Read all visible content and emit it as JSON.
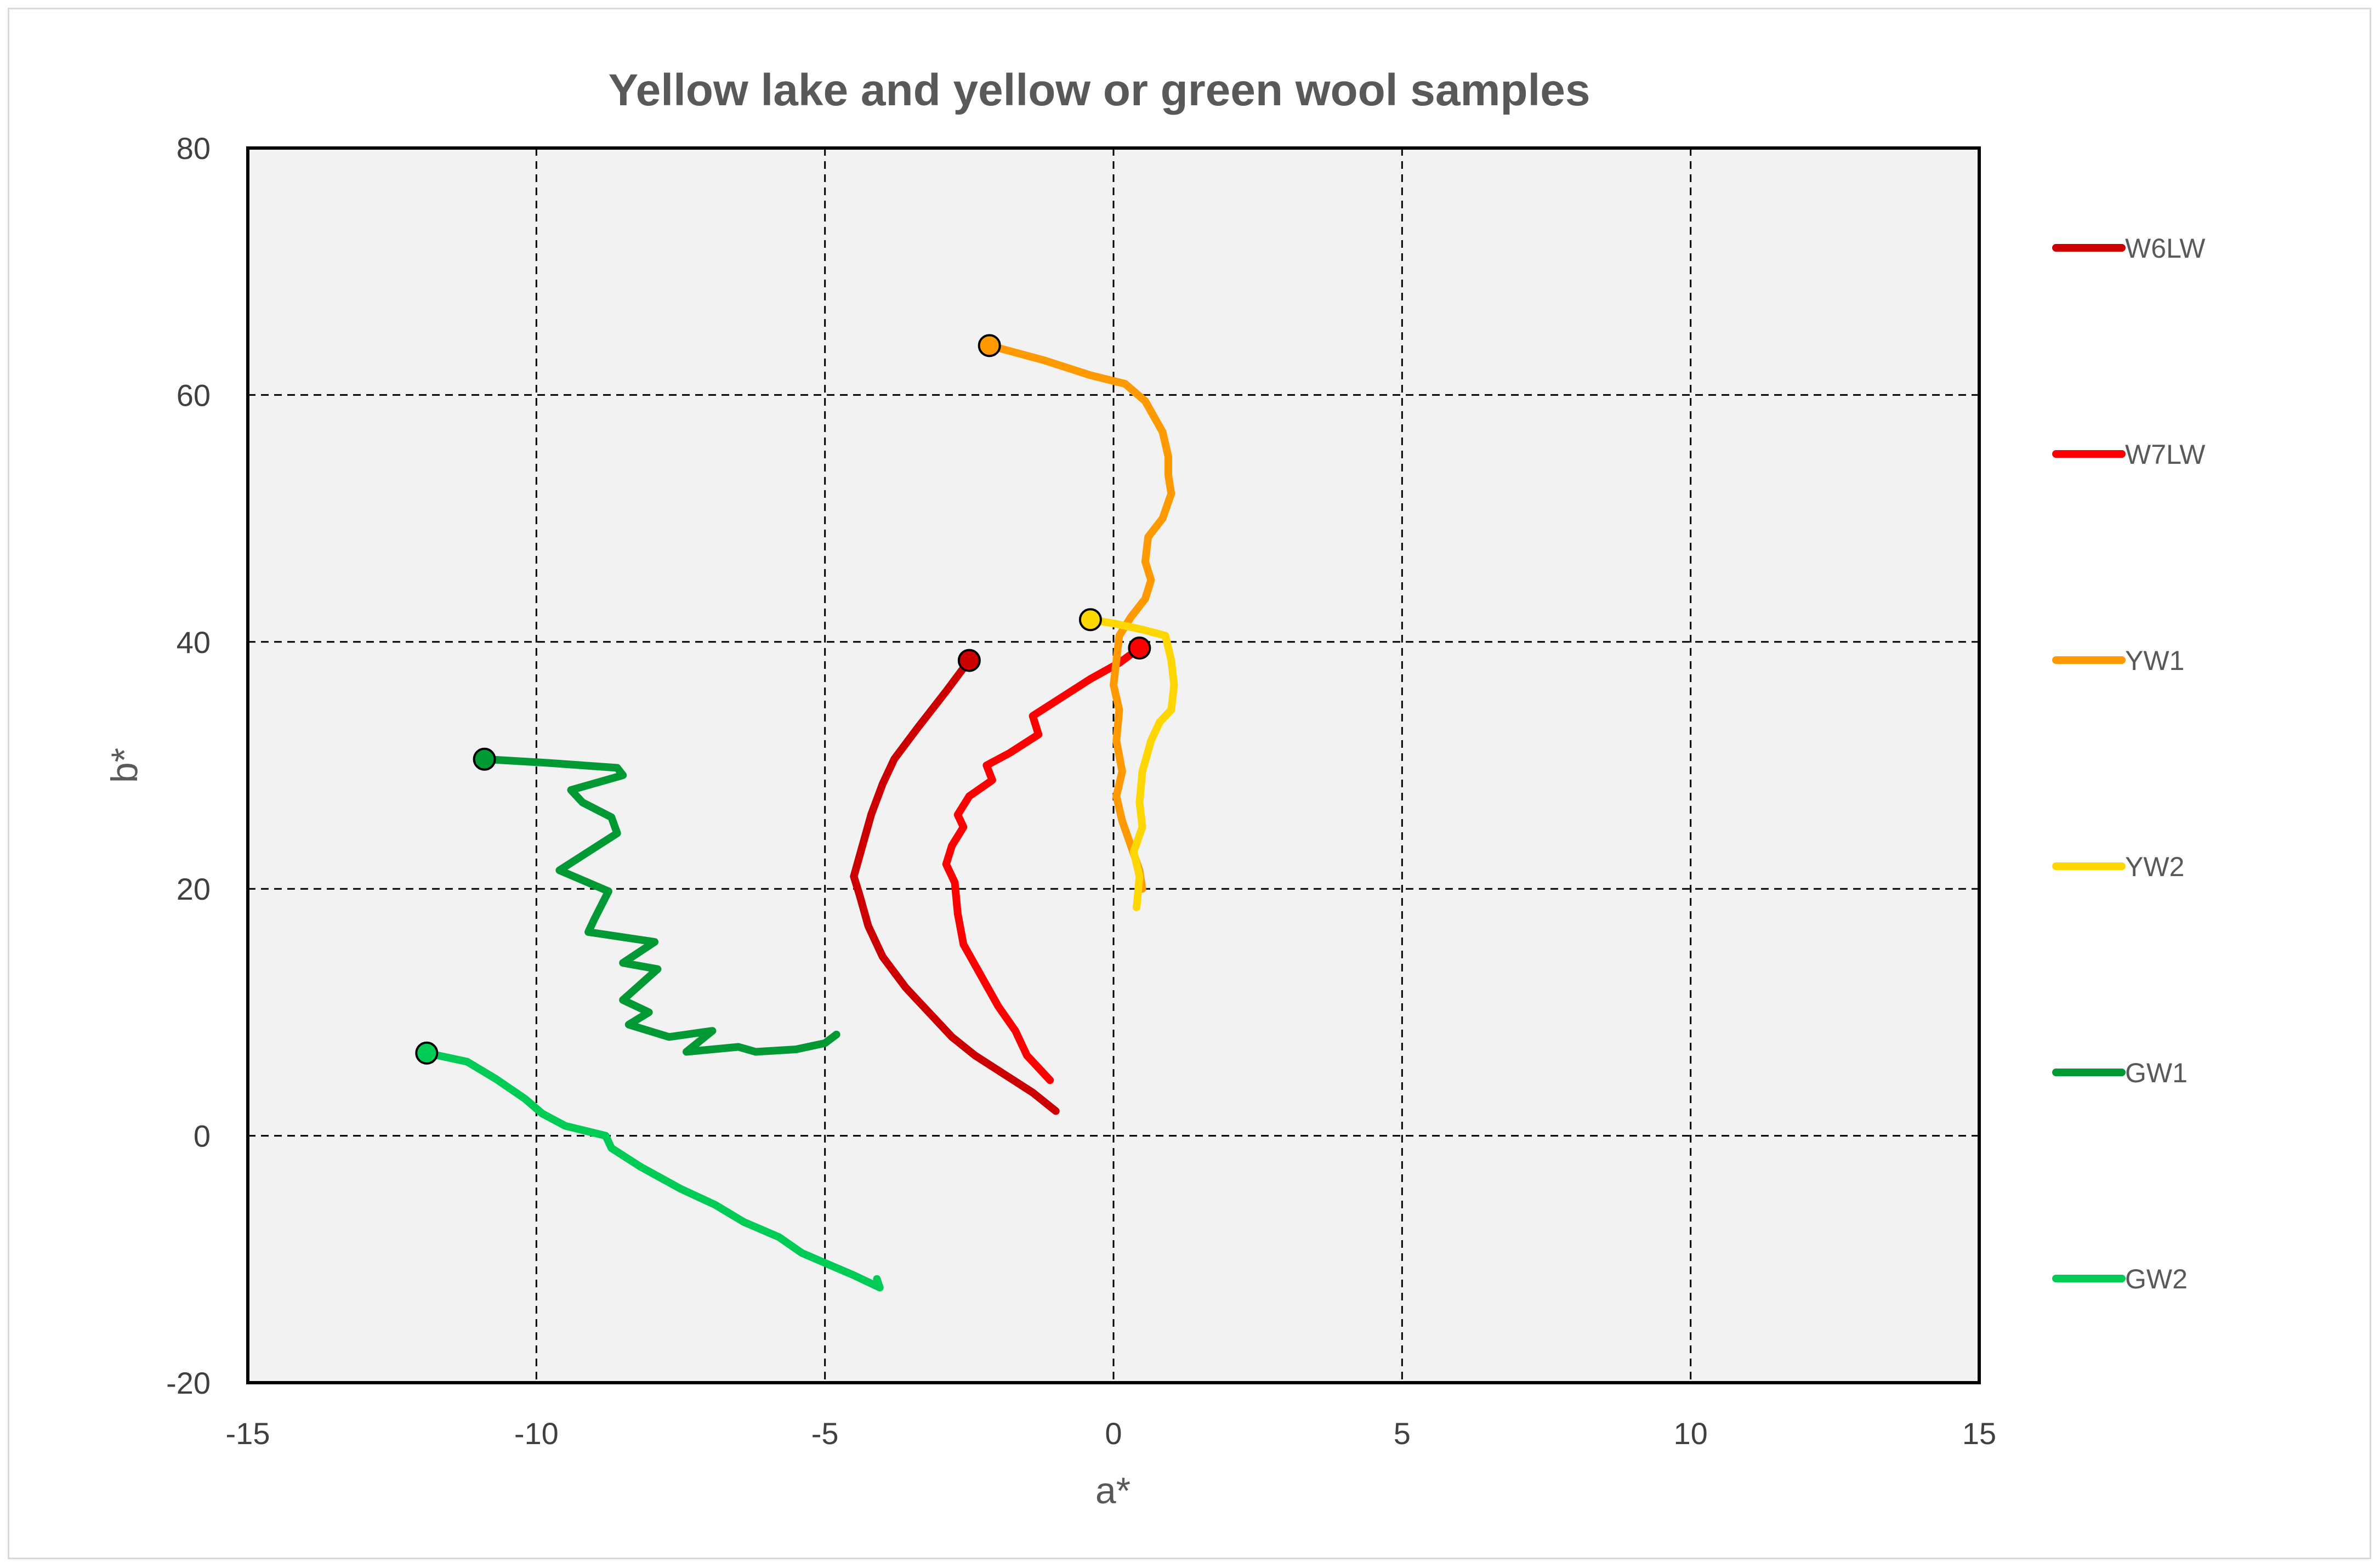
{
  "chart_data": {
    "type": "line",
    "title": "Yellow lake and yellow or green wool samples",
    "xlabel": "a*",
    "ylabel": "b*",
    "xlim": [
      -15,
      15
    ],
    "ylim": [
      -20,
      80
    ],
    "xticks": [
      -15,
      -10,
      -5,
      0,
      5,
      10,
      15
    ],
    "yticks": [
      -20,
      0,
      20,
      40,
      60,
      80
    ],
    "xtick_labels": [
      "-15",
      "-10",
      "-5",
      "0",
      "5",
      "10",
      "15"
    ],
    "ytick_labels": [
      "-20",
      "0",
      "20",
      "40",
      "60",
      "80"
    ],
    "grid": "dashed",
    "plot_background": "#f2f2f2",
    "legend_position": "right",
    "series": [
      {
        "name": "W6LW",
        "color": "#cc0000",
        "start_marker": true,
        "points": [
          [
            -2.5,
            38.5
          ],
          [
            -2.9,
            36.0
          ],
          [
            -3.4,
            33.0
          ],
          [
            -3.8,
            30.5
          ],
          [
            -4.0,
            28.5
          ],
          [
            -4.2,
            26.0
          ],
          [
            -4.35,
            23.5
          ],
          [
            -4.5,
            21.0
          ],
          [
            -4.4,
            19.5
          ],
          [
            -4.25,
            17.0
          ],
          [
            -4.0,
            14.5
          ],
          [
            -3.6,
            12.0
          ],
          [
            -3.2,
            10.0
          ],
          [
            -2.8,
            8.0
          ],
          [
            -2.4,
            6.5
          ],
          [
            -1.9,
            5.0
          ],
          [
            -1.4,
            3.5
          ],
          [
            -1.0,
            2.0
          ]
        ]
      },
      {
        "name": "W7LW",
        "color": "#ff0000",
        "start_marker": true,
        "points": [
          [
            0.45,
            39.5
          ],
          [
            0.1,
            38.3
          ],
          [
            -0.4,
            37.0
          ],
          [
            -0.9,
            35.5
          ],
          [
            -1.4,
            34.0
          ],
          [
            -1.3,
            32.5
          ],
          [
            -1.8,
            31.0
          ],
          [
            -2.2,
            30.0
          ],
          [
            -2.1,
            28.8
          ],
          [
            -2.5,
            27.5
          ],
          [
            -2.7,
            26.0
          ],
          [
            -2.6,
            25.0
          ],
          [
            -2.8,
            23.5
          ],
          [
            -2.9,
            22.0
          ],
          [
            -2.75,
            20.5
          ],
          [
            -2.7,
            18.0
          ],
          [
            -2.6,
            15.5
          ],
          [
            -2.3,
            13.0
          ],
          [
            -2.0,
            10.5
          ],
          [
            -1.7,
            8.5
          ],
          [
            -1.5,
            6.5
          ],
          [
            -1.1,
            4.5
          ]
        ]
      },
      {
        "name": "YW1",
        "color": "#ff9900",
        "start_marker": true,
        "points": [
          [
            -2.15,
            64.0
          ],
          [
            -1.2,
            62.8
          ],
          [
            -0.4,
            61.6
          ],
          [
            0.2,
            60.9
          ],
          [
            0.55,
            59.5
          ],
          [
            0.85,
            57.0
          ],
          [
            0.95,
            55.0
          ],
          [
            0.95,
            53.5
          ],
          [
            1.0,
            52.0
          ],
          [
            0.85,
            50.0
          ],
          [
            0.6,
            48.5
          ],
          [
            0.55,
            46.5
          ],
          [
            0.65,
            45.0
          ],
          [
            0.55,
            43.5
          ],
          [
            0.3,
            42.0
          ],
          [
            0.1,
            40.5
          ],
          [
            0.05,
            38.5
          ],
          [
            0.0,
            36.5
          ],
          [
            0.1,
            34.5
          ],
          [
            0.05,
            32.0
          ],
          [
            0.15,
            29.5
          ],
          [
            0.05,
            27.5
          ],
          [
            0.15,
            25.5
          ],
          [
            0.3,
            23.5
          ],
          [
            0.45,
            21.5
          ],
          [
            0.5,
            20.0
          ]
        ]
      },
      {
        "name": "YW2",
        "color": "#ffd700",
        "start_marker": true,
        "points": [
          [
            -0.4,
            41.8
          ],
          [
            0.0,
            41.5
          ],
          [
            0.5,
            41.0
          ],
          [
            0.9,
            40.5
          ],
          [
            1.0,
            38.5
          ],
          [
            1.05,
            36.5
          ],
          [
            1.0,
            34.5
          ],
          [
            0.8,
            33.5
          ],
          [
            0.65,
            32.0
          ],
          [
            0.5,
            29.5
          ],
          [
            0.45,
            27.0
          ],
          [
            0.5,
            25.0
          ],
          [
            0.35,
            23.0
          ],
          [
            0.45,
            21.0
          ],
          [
            0.4,
            18.5
          ]
        ]
      },
      {
        "name": "GW1",
        "color": "#009933",
        "start_marker": true,
        "points": [
          [
            -10.9,
            30.5
          ],
          [
            -9.8,
            30.2
          ],
          [
            -8.6,
            29.8
          ],
          [
            -8.5,
            29.2
          ],
          [
            -9.4,
            28.0
          ],
          [
            -9.2,
            27.0
          ],
          [
            -8.7,
            25.8
          ],
          [
            -8.6,
            24.5
          ],
          [
            -9.6,
            21.5
          ],
          [
            -8.75,
            19.8
          ],
          [
            -9.0,
            17.5
          ],
          [
            -9.1,
            16.5
          ],
          [
            -7.95,
            15.7
          ],
          [
            -8.5,
            14.0
          ],
          [
            -7.9,
            13.5
          ],
          [
            -8.5,
            11.0
          ],
          [
            -8.05,
            10.0
          ],
          [
            -8.4,
            9.0
          ],
          [
            -7.7,
            8.0
          ],
          [
            -6.95,
            8.5
          ],
          [
            -7.4,
            6.8
          ],
          [
            -6.5,
            7.2
          ],
          [
            -6.2,
            6.8
          ],
          [
            -5.5,
            7.0
          ],
          [
            -5.0,
            7.5
          ],
          [
            -4.8,
            8.2
          ]
        ]
      },
      {
        "name": "GW2",
        "color": "#00cc55",
        "start_marker": true,
        "points": [
          [
            -11.9,
            6.7
          ],
          [
            -11.2,
            6.0
          ],
          [
            -10.7,
            4.6
          ],
          [
            -10.2,
            3.0
          ],
          [
            -9.9,
            1.8
          ],
          [
            -9.5,
            0.8
          ],
          [
            -8.8,
            0.0
          ],
          [
            -8.7,
            -1.0
          ],
          [
            -8.2,
            -2.5
          ],
          [
            -7.5,
            -4.3
          ],
          [
            -6.9,
            -5.6
          ],
          [
            -6.4,
            -7.0
          ],
          [
            -5.8,
            -8.2
          ],
          [
            -5.4,
            -9.5
          ],
          [
            -4.9,
            -10.5
          ],
          [
            -4.5,
            -11.3
          ],
          [
            -4.05,
            -12.3
          ],
          [
            -4.1,
            -11.6
          ]
        ]
      }
    ]
  }
}
